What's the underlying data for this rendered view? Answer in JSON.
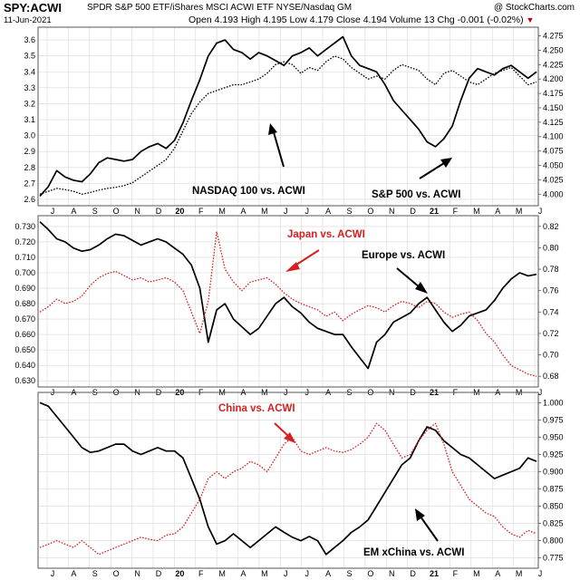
{
  "header": {
    "symbol": "SPY:ACWI",
    "description": "SPDR S&P 500 ETF/iShares MSCI ACWI ETF NYSE/Nasdaq GM",
    "watermark": "@ StockCharts.com",
    "date": "11-Jun-2021",
    "open_label": "Open",
    "open": "4.193",
    "high_label": "High",
    "high": "4.195",
    "low_label": "Low",
    "low": "4.179",
    "close_label": "Close",
    "close": "4.194",
    "volume_label": "Volume",
    "volume": "13",
    "chg_label": "Chg",
    "chg": "-0.001 (-0.02%)",
    "chg_direction_color": "#c00000"
  },
  "x_axis": {
    "labels": [
      "J",
      "A",
      "S",
      "O",
      "N",
      "D",
      "20",
      "F",
      "M",
      "A",
      "M",
      "J",
      "J",
      "A",
      "S",
      "O",
      "N",
      "D",
      "21",
      "F",
      "M",
      "A",
      "M",
      "J"
    ],
    "bold_labels": [
      "20",
      "21"
    ]
  },
  "annotations": {
    "panel1_nasdaq": "NASDAQ 100 vs. ACWI",
    "panel1_sp500": "S&P 500 vs. ACWI",
    "panel2_japan": "Japan vs. ACWI",
    "panel2_europe": "Europe vs. ACWI",
    "panel3_china": "China vs. ACWI",
    "panel3_emx": "EM xChina vs. ACWI"
  },
  "colors": {
    "black_series": "#000000",
    "red_series": "#d42020",
    "grid": "#d8d8d8",
    "frame": "#555555"
  },
  "chart_data": [
    {
      "type": "line",
      "panel": 1,
      "y_left": {
        "ticks": [
          2.6,
          2.7,
          2.8,
          2.9,
          3.0,
          3.1,
          3.2,
          3.3,
          3.4,
          3.5,
          3.6
        ],
        "range": [
          2.56,
          3.68
        ]
      },
      "y_right": {
        "ticks": [
          4.0,
          4.025,
          4.05,
          4.075,
          4.1,
          4.125,
          4.15,
          4.175,
          4.2,
          4.225,
          4.25,
          4.275
        ],
        "range": [
          3.98,
          4.29
        ]
      },
      "series": [
        {
          "name": "NASDAQ 100 vs. ACWI",
          "axis": "left",
          "style": "solid",
          "color": "#000000",
          "values": [
            2.62,
            2.68,
            2.78,
            2.74,
            2.72,
            2.71,
            2.76,
            2.83,
            2.86,
            2.85,
            2.84,
            2.85,
            2.9,
            2.93,
            2.95,
            2.92,
            2.97,
            3.08,
            3.22,
            3.35,
            3.5,
            3.58,
            3.6,
            3.54,
            3.52,
            3.48,
            3.52,
            3.5,
            3.47,
            3.44,
            3.5,
            3.52,
            3.55,
            3.5,
            3.54,
            3.58,
            3.62,
            3.5,
            3.44,
            3.42,
            3.4,
            3.32,
            3.22,
            3.16,
            3.1,
            3.04,
            2.96,
            2.93,
            2.98,
            3.06,
            3.22,
            3.36,
            3.42,
            3.4,
            3.38,
            3.42,
            3.44,
            3.4,
            3.36,
            3.4
          ]
        },
        {
          "name": "S&P 500 vs. ACWI",
          "axis": "right",
          "style": "dotted",
          "color": "#000000",
          "values": [
            4.0,
            4.005,
            4.01,
            4.008,
            4.005,
            4.0,
            4.003,
            4.007,
            4.01,
            4.012,
            4.015,
            4.02,
            4.03,
            4.04,
            4.05,
            4.06,
            4.08,
            4.11,
            4.14,
            4.16,
            4.175,
            4.18,
            4.185,
            4.19,
            4.19,
            4.195,
            4.2,
            4.21,
            4.225,
            4.23,
            4.225,
            4.21,
            4.22,
            4.215,
            4.23,
            4.24,
            4.235,
            4.22,
            4.21,
            4.2,
            4.205,
            4.2,
            4.215,
            4.225,
            4.22,
            4.215,
            4.2,
            4.19,
            4.21,
            4.215,
            4.205,
            4.195,
            4.19,
            4.2,
            4.21,
            4.215,
            4.22,
            4.205,
            4.19,
            4.195
          ]
        }
      ]
    },
    {
      "type": "line",
      "panel": 2,
      "y_left": {
        "ticks": [
          0.63,
          0.64,
          0.65,
          0.66,
          0.67,
          0.68,
          0.69,
          0.7,
          0.71,
          0.72,
          0.73
        ],
        "range": [
          0.626,
          0.737
        ]
      },
      "y_right": {
        "ticks": [
          0.68,
          0.7,
          0.72,
          0.74,
          0.76,
          0.78,
          0.8,
          0.82
        ],
        "range": [
          0.67,
          0.83
        ]
      },
      "series": [
        {
          "name": "Europe vs. ACWI",
          "axis": "left",
          "style": "solid",
          "color": "#000000",
          "values": [
            0.733,
            0.728,
            0.722,
            0.72,
            0.716,
            0.714,
            0.715,
            0.718,
            0.722,
            0.725,
            0.724,
            0.721,
            0.718,
            0.72,
            0.722,
            0.72,
            0.716,
            0.712,
            0.705,
            0.69,
            0.655,
            0.676,
            0.68,
            0.67,
            0.665,
            0.66,
            0.664,
            0.672,
            0.68,
            0.684,
            0.678,
            0.674,
            0.668,
            0.664,
            0.662,
            0.66,
            0.66,
            0.652,
            0.645,
            0.638,
            0.655,
            0.66,
            0.668,
            0.671,
            0.674,
            0.68,
            0.684,
            0.676,
            0.668,
            0.662,
            0.666,
            0.672,
            0.674,
            0.676,
            0.682,
            0.69,
            0.696,
            0.7,
            0.698,
            0.699
          ]
        },
        {
          "name": "Japan vs. ACWI",
          "axis": "right",
          "style": "dotted",
          "color": "#d42020",
          "values": [
            0.74,
            0.745,
            0.752,
            0.748,
            0.75,
            0.755,
            0.765,
            0.772,
            0.776,
            0.778,
            0.774,
            0.77,
            0.772,
            0.768,
            0.77,
            0.772,
            0.768,
            0.76,
            0.74,
            0.72,
            0.75,
            0.815,
            0.78,
            0.768,
            0.76,
            0.768,
            0.77,
            0.772,
            0.766,
            0.758,
            0.752,
            0.748,
            0.745,
            0.742,
            0.736,
            0.74,
            0.732,
            0.738,
            0.742,
            0.746,
            0.744,
            0.74,
            0.746,
            0.75,
            0.748,
            0.744,
            0.75,
            0.748,
            0.74,
            0.735,
            0.738,
            0.74,
            0.732,
            0.72,
            0.712,
            0.7,
            0.69,
            0.686,
            0.682,
            0.68
          ]
        }
      ]
    },
    {
      "type": "line",
      "panel": 3,
      "y_left": {
        "ticks": [],
        "range": [
          0,
          1
        ]
      },
      "y_right": {
        "ticks": [
          0.775,
          0.8,
          0.825,
          0.85,
          0.875,
          0.9,
          0.925,
          0.95,
          0.975,
          1.0
        ],
        "range": [
          0.76,
          1.015
        ]
      },
      "series": [
        {
          "name": "EM xChina vs. ACWI",
          "axis": "right",
          "style": "solid",
          "color": "#000000",
          "values": [
            1.0,
            0.995,
            0.98,
            0.965,
            0.95,
            0.935,
            0.928,
            0.93,
            0.935,
            0.94,
            0.94,
            0.93,
            0.925,
            0.93,
            0.935,
            0.93,
            0.93,
            0.92,
            0.89,
            0.86,
            0.82,
            0.795,
            0.8,
            0.81,
            0.8,
            0.79,
            0.8,
            0.81,
            0.82,
            0.812,
            0.805,
            0.8,
            0.806,
            0.8,
            0.78,
            0.79,
            0.8,
            0.812,
            0.82,
            0.83,
            0.85,
            0.87,
            0.89,
            0.91,
            0.92,
            0.945,
            0.965,
            0.96,
            0.945,
            0.935,
            0.925,
            0.92,
            0.91,
            0.9,
            0.89,
            0.895,
            0.9,
            0.905,
            0.92,
            0.915
          ]
        },
        {
          "name": "China vs. ACWI",
          "axis": "right",
          "style": "dotted",
          "color": "#d42020",
          "values": [
            0.79,
            0.795,
            0.8,
            0.795,
            0.79,
            0.8,
            0.79,
            0.78,
            0.785,
            0.79,
            0.795,
            0.8,
            0.805,
            0.802,
            0.8,
            0.808,
            0.81,
            0.82,
            0.84,
            0.86,
            0.89,
            0.9,
            0.89,
            0.9,
            0.905,
            0.915,
            0.91,
            0.9,
            0.92,
            0.94,
            0.95,
            0.93,
            0.925,
            0.93,
            0.935,
            0.93,
            0.928,
            0.932,
            0.94,
            0.95,
            0.97,
            0.96,
            0.94,
            0.92,
            0.925,
            0.945,
            0.96,
            0.97,
            0.94,
            0.9,
            0.88,
            0.86,
            0.85,
            0.84,
            0.835,
            0.82,
            0.81,
            0.805,
            0.815,
            0.81
          ]
        }
      ]
    }
  ]
}
